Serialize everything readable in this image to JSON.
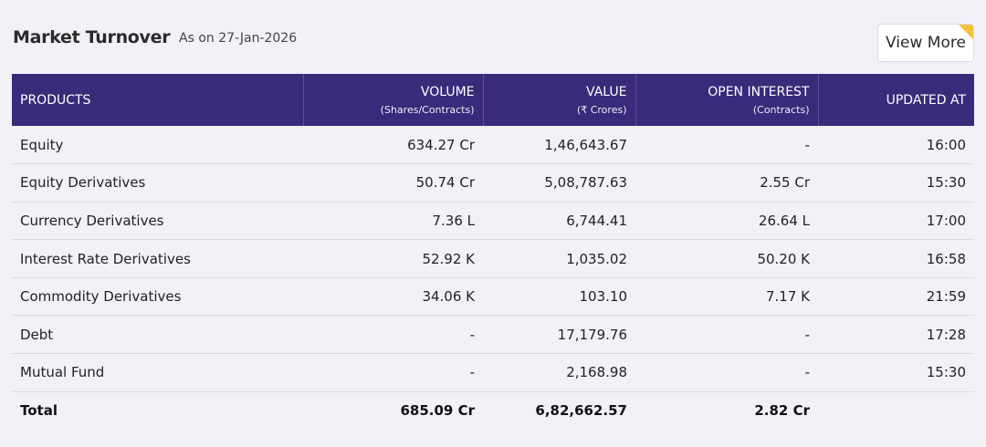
{
  "header": {
    "title": "Market Turnover",
    "as_on": "As on 27-Jan-2026",
    "view_more_label": "View More"
  },
  "table": {
    "columns": [
      {
        "label": "PRODUCTS",
        "sub": ""
      },
      {
        "label": "VOLUME",
        "sub": "(Shares/Contracts)"
      },
      {
        "label": "VALUE",
        "sub": "(₹ Crores)"
      },
      {
        "label": "OPEN INTEREST",
        "sub": "(Contracts)"
      },
      {
        "label": "UPDATED AT",
        "sub": ""
      }
    ],
    "rows": [
      {
        "product": "Equity",
        "volume": "634.27 Cr",
        "value": "1,46,643.67",
        "open_interest": "-",
        "updated_at": "16:00"
      },
      {
        "product": "Equity Derivatives",
        "volume": "50.74 Cr",
        "value": "5,08,787.63",
        "open_interest": "2.55 Cr",
        "updated_at": "15:30"
      },
      {
        "product": "Currency Derivatives",
        "volume": "7.36 L",
        "value": "6,744.41",
        "open_interest": "26.64 L",
        "updated_at": "17:00"
      },
      {
        "product": "Interest Rate Derivatives",
        "volume": "52.92 K",
        "value": "1,035.02",
        "open_interest": "50.20 K",
        "updated_at": "16:58"
      },
      {
        "product": "Commodity Derivatives",
        "volume": "34.06 K",
        "value": "103.10",
        "open_interest": "7.17 K",
        "updated_at": "21:59"
      },
      {
        "product": "Debt",
        "volume": "-",
        "value": "17,179.76",
        "open_interest": "-",
        "updated_at": "17:28"
      },
      {
        "product": "Mutual Fund",
        "volume": "-",
        "value": "2,168.98",
        "open_interest": "-",
        "updated_at": "15:30"
      }
    ],
    "total": {
      "product": "Total",
      "volume": "685.09 Cr",
      "value": "6,82,662.57",
      "open_interest": "2.82 Cr",
      "updated_at": ""
    }
  },
  "colors": {
    "header_bg": "#3a2a7a",
    "accent_corner": "#f3c13a",
    "page_bg": "#f2f1f8"
  }
}
